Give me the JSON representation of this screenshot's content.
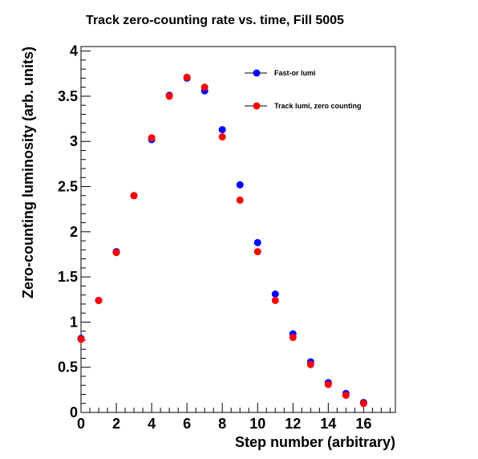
{
  "chart_data": {
    "type": "scatter",
    "title": "Track zero-counting rate vs. time, Fill 5005",
    "xlabel": "Step number (arbitrary)",
    "ylabel": "Zero-counting luminosity (arb. units)",
    "xlim": [
      0,
      17.8
    ],
    "ylim": [
      0,
      4.05
    ],
    "xticks": [
      0,
      2,
      4,
      6,
      8,
      10,
      12,
      14,
      16
    ],
    "yticks": [
      0,
      0.5,
      1,
      1.5,
      2,
      2.5,
      3,
      3.5,
      4
    ],
    "xtick_labels": [
      "0",
      "2",
      "4",
      "6",
      "8",
      "10",
      "12",
      "14",
      "16"
    ],
    "ytick_labels": [
      "0",
      "0.5",
      "1",
      "1.5",
      "2",
      "2.5",
      "3",
      "3.5",
      "4"
    ],
    "grid": false,
    "legend_position": "top-right",
    "series": [
      {
        "name": "Fast-or lumi",
        "color": "#0000ff",
        "x": [
          0,
          1,
          2,
          3,
          4,
          5,
          6,
          7,
          8,
          9,
          10,
          11,
          12,
          13,
          14,
          15,
          16
        ],
        "y": [
          0.82,
          1.24,
          1.78,
          2.4,
          3.02,
          3.51,
          3.7,
          3.56,
          3.13,
          2.52,
          1.88,
          1.31,
          0.87,
          0.56,
          0.33,
          0.21,
          0.11
        ]
      },
      {
        "name": "Track lumi, zero counting",
        "color": "#ff0000",
        "x": [
          0,
          1,
          2,
          3,
          4,
          5,
          6,
          7,
          8,
          9,
          10,
          11,
          12,
          13,
          14,
          15,
          16
        ],
        "y": [
          0.81,
          1.24,
          1.77,
          2.4,
          3.04,
          3.5,
          3.71,
          3.6,
          3.05,
          2.35,
          1.78,
          1.24,
          0.83,
          0.53,
          0.31,
          0.19,
          0.1
        ]
      }
    ]
  }
}
